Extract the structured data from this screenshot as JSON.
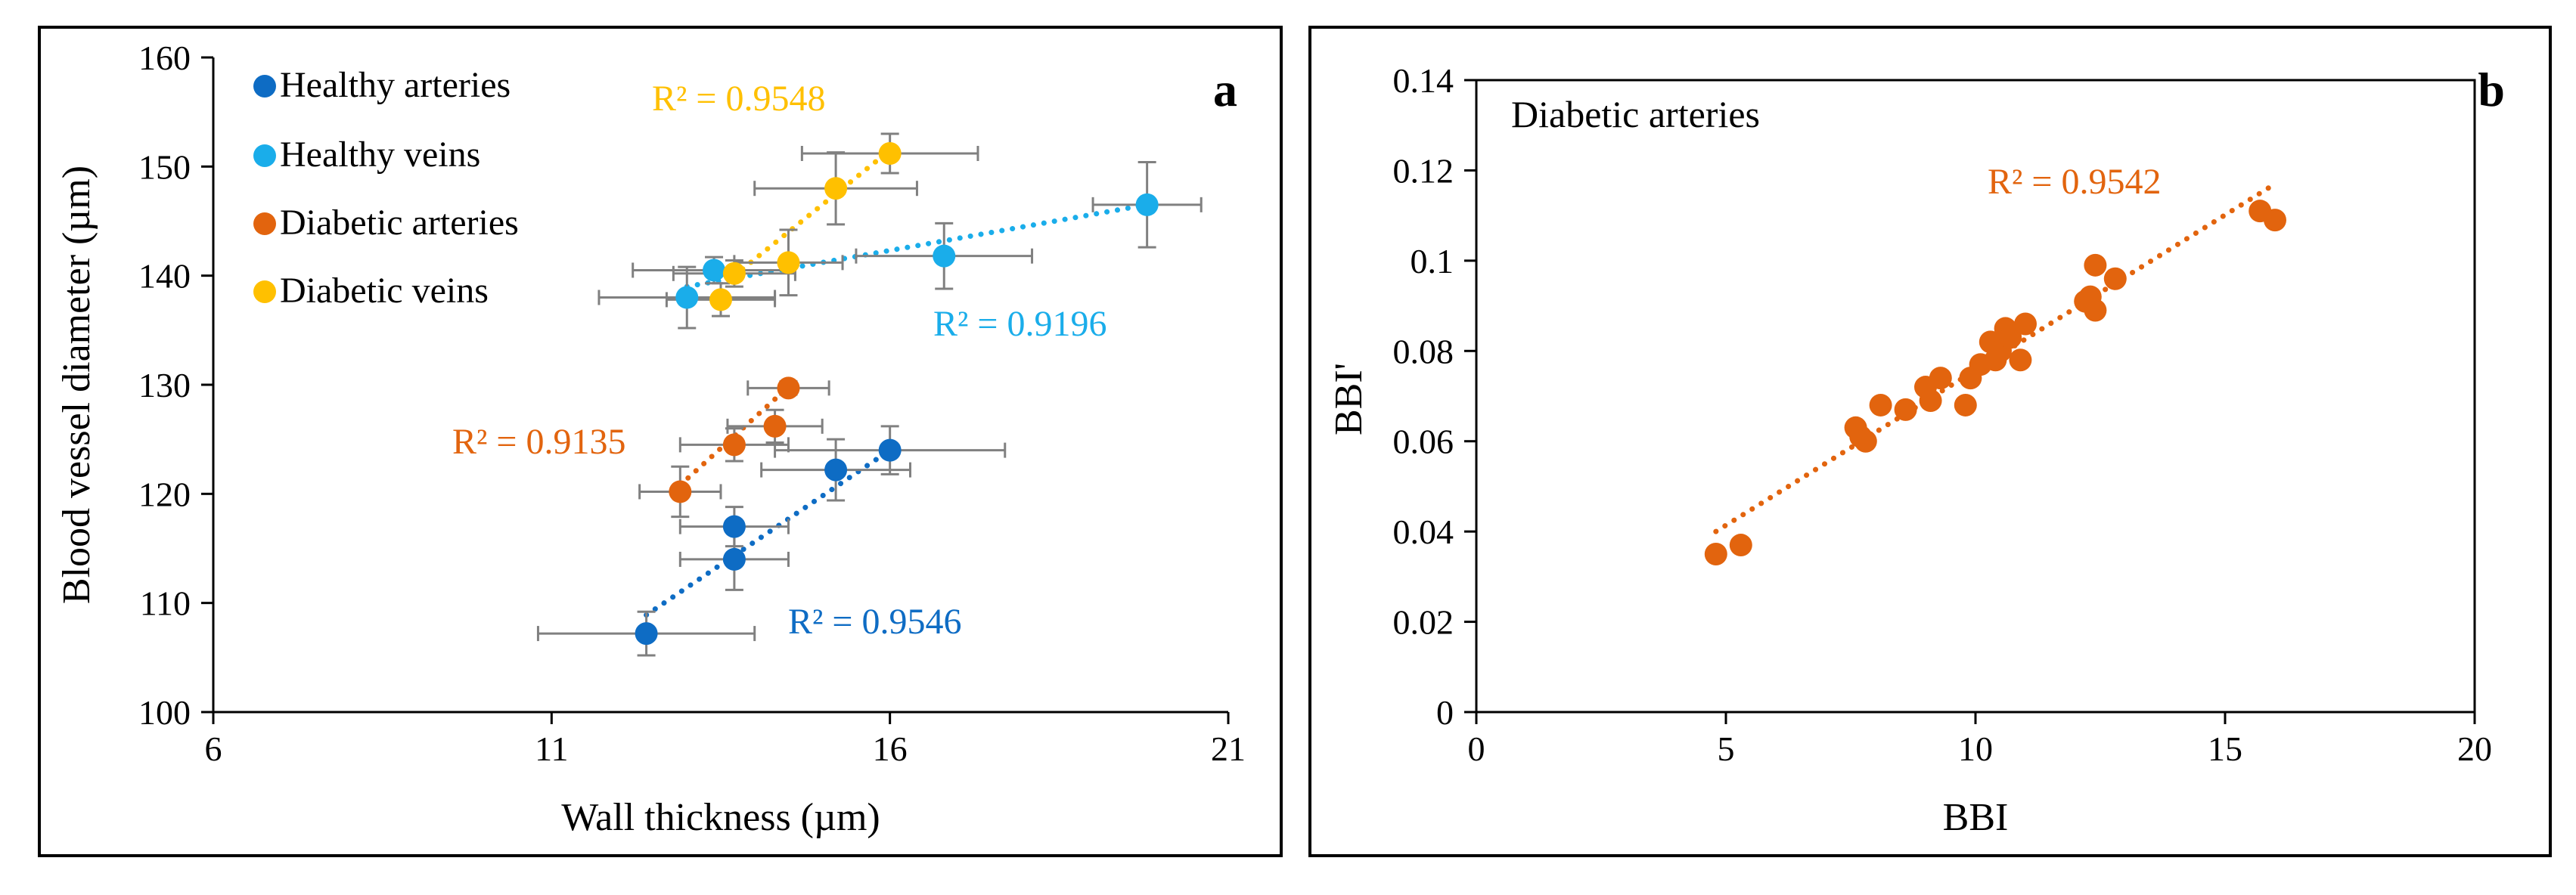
{
  "chart_data": [
    {
      "panel_label": "a",
      "type": "scatter",
      "xlabel": "Wall thickness (µm)",
      "ylabel": "Blood vessel diameter (µm)",
      "xlim": [
        6,
        21
      ],
      "ylim": [
        100,
        160
      ],
      "xticks": [
        6,
        11,
        16,
        21
      ],
      "yticks": [
        100,
        110,
        120,
        130,
        140,
        150,
        160
      ],
      "legend_position": "top-left",
      "error_bar_color": "#808080",
      "series": [
        {
          "name": "Healthy arteries",
          "color": "#0E6CC4",
          "r2": "R² = 0.9546",
          "trend": {
            "x": [
              12.4,
              16.0
            ],
            "y": [
              108.9,
              124.0
            ]
          },
          "points": [
            {
              "x": 12.4,
              "y": 107.2,
              "xerr": 1.6,
              "yerr": 2.0
            },
            {
              "x": 13.7,
              "y": 114.0,
              "xerr": 0.8,
              "yerr": 2.8
            },
            {
              "x": 13.7,
              "y": 117.0,
              "xerr": 0.8,
              "yerr": 1.8
            },
            {
              "x": 15.2,
              "y": 122.2,
              "xerr": 1.1,
              "yerr": 2.8
            },
            {
              "x": 16.0,
              "y": 124.0,
              "xerr": 1.7,
              "yerr": 2.2
            }
          ]
        },
        {
          "name": "Healthy veins",
          "color": "#1AADEA",
          "r2": "R² = 0.9196",
          "trend": {
            "x": [
              13.0,
              19.8
            ],
            "y": [
              139.0,
              146.5
            ]
          },
          "points": [
            {
              "x": 13.0,
              "y": 138.0,
              "xerr": 1.3,
              "yerr": 2.8
            },
            {
              "x": 13.4,
              "y": 140.5,
              "xerr": 1.2,
              "yerr": 1.2
            },
            {
              "x": 16.8,
              "y": 141.8,
              "xerr": 1.3,
              "yerr": 3.0
            },
            {
              "x": 19.8,
              "y": 146.5,
              "xerr": 0.8,
              "yerr": 3.9
            }
          ]
        },
        {
          "name": "Diabetic arteries",
          "color": "#E2640E",
          "r2": "R² = 0.9135",
          "trend": {
            "x": [
              12.9,
              14.5
            ],
            "y": [
              120.8,
              129.8
            ]
          },
          "points": [
            {
              "x": 12.9,
              "y": 120.2,
              "xerr": 0.6,
              "yerr": 2.3
            },
            {
              "x": 13.7,
              "y": 124.5,
              "xerr": 0.8,
              "yerr": 1.5
            },
            {
              "x": 14.3,
              "y": 126.2,
              "xerr": 0.7,
              "yerr": 1.5
            },
            {
              "x": 14.5,
              "y": 129.7,
              "xerr": 0.6,
              "yerr": 0.6
            }
          ]
        },
        {
          "name": "Diabetic veins",
          "color": "#FFC000",
          "r2": "R² = 0.9548",
          "trend": {
            "x": [
              13.7,
              16.0
            ],
            "y": [
              140.0,
              151.5
            ]
          },
          "points": [
            {
              "x": 13.5,
              "y": 137.8,
              "xerr": 0.8,
              "yerr": 1.5
            },
            {
              "x": 13.7,
              "y": 140.2,
              "xerr": 0.9,
              "yerr": 1.2
            },
            {
              "x": 14.5,
              "y": 141.2,
              "xerr": 0.8,
              "yerr": 3.0
            },
            {
              "x": 15.2,
              "y": 148.0,
              "xerr": 1.2,
              "yerr": 3.3
            },
            {
              "x": 16.0,
              "y": 151.2,
              "xerr": 1.3,
              "yerr": 1.8
            }
          ]
        }
      ]
    },
    {
      "panel_label": "b",
      "type": "scatter",
      "title": "Diabetic arteries",
      "xlabel": "BBI",
      "ylabel": "BBI'",
      "xlim": [
        0,
        20
      ],
      "ylim": [
        0,
        0.14
      ],
      "xticks": [
        0,
        5,
        10,
        15,
        20
      ],
      "yticks": [
        0,
        0.02,
        0.04,
        0.06,
        0.08,
        0.1,
        0.12,
        0.14
      ],
      "ytick_labels": [
        "0",
        "0.02",
        "0.04",
        "0.06",
        "0.08",
        "0.1",
        "0.12",
        "0.14"
      ],
      "series": [
        {
          "name": "Diabetic arteries",
          "color": "#E2640E",
          "r2": "R² = 0.9542",
          "trend": {
            "x": [
              4.8,
              16.0
            ],
            "y": [
              0.04,
              0.117
            ]
          },
          "points": [
            {
              "x": 4.8,
              "y": 0.035
            },
            {
              "x": 5.3,
              "y": 0.037
            },
            {
              "x": 7.6,
              "y": 0.063
            },
            {
              "x": 7.7,
              "y": 0.061
            },
            {
              "x": 7.8,
              "y": 0.06
            },
            {
              "x": 8.1,
              "y": 0.068
            },
            {
              "x": 8.6,
              "y": 0.067
            },
            {
              "x": 9.0,
              "y": 0.072
            },
            {
              "x": 9.1,
              "y": 0.069
            },
            {
              "x": 9.3,
              "y": 0.074
            },
            {
              "x": 9.8,
              "y": 0.068
            },
            {
              "x": 9.9,
              "y": 0.074
            },
            {
              "x": 10.1,
              "y": 0.077
            },
            {
              "x": 10.3,
              "y": 0.082
            },
            {
              "x": 10.4,
              "y": 0.078
            },
            {
              "x": 10.5,
              "y": 0.08
            },
            {
              "x": 10.6,
              "y": 0.085
            },
            {
              "x": 10.7,
              "y": 0.083
            },
            {
              "x": 10.9,
              "y": 0.078
            },
            {
              "x": 11.0,
              "y": 0.086
            },
            {
              "x": 12.2,
              "y": 0.091
            },
            {
              "x": 12.3,
              "y": 0.092
            },
            {
              "x": 12.4,
              "y": 0.099
            },
            {
              "x": 12.4,
              "y": 0.089
            },
            {
              "x": 12.8,
              "y": 0.096
            },
            {
              "x": 15.7,
              "y": 0.111
            },
            {
              "x": 16.0,
              "y": 0.109
            }
          ]
        }
      ]
    }
  ]
}
